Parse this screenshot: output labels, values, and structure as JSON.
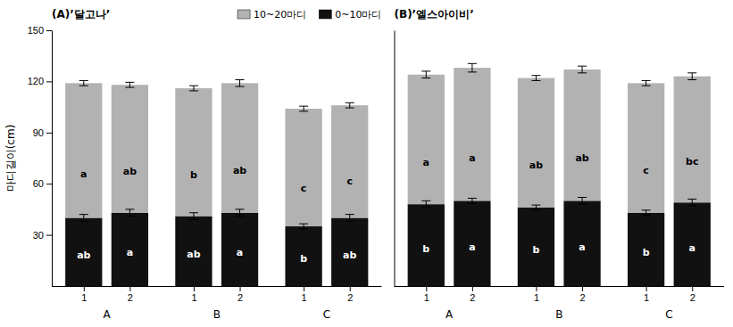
{
  "chart_data": [
    {
      "type": "bar",
      "stacked": true,
      "title": "(A)’달고나’",
      "y_label": "마디길이(cm)",
      "categories": [
        "1",
        "2",
        "1",
        "2",
        "1",
        "2"
      ],
      "groups": [
        "A",
        "B",
        "C"
      ],
      "ylim": [
        0,
        150
      ],
      "yticks": [
        30,
        60,
        90,
        120,
        150
      ],
      "grid": false,
      "legend": "upper right",
      "series": [
        {
          "name": "0~10마디",
          "color": "#111111",
          "values": [
            40.0,
            43.0,
            41.0,
            43.0,
            35.0,
            40.0
          ],
          "errors": [
            2.0,
            2.0,
            2.0,
            2.0,
            1.5,
            2.0
          ],
          "annotations": [
            "ab",
            "a",
            "ab",
            "a",
            "b",
            "ab"
          ]
        },
        {
          "name": "10~20마디",
          "color": "#b2b2b2",
          "values": [
            79.0,
            75.0,
            75.0,
            76.0,
            69.0,
            66.0
          ],
          "errors": [
            1.5,
            1.5,
            1.5,
            2.0,
            1.5,
            1.5
          ],
          "annotations": [
            "a",
            "ab",
            "b",
            "ab",
            "c",
            "c"
          ]
        }
      ]
    },
    {
      "type": "bar",
      "stacked": true,
      "title": "(B)’엘스아이비’",
      "categories": [
        "1",
        "2",
        "1",
        "2",
        "1",
        "2"
      ],
      "groups": [
        "A",
        "B",
        "C"
      ],
      "ylim": [
        0,
        150
      ],
      "yticks": [
        30,
        60,
        90,
        120,
        150
      ],
      "grid": false,
      "tick_labels": "x",
      "series": [
        {
          "color": "#111111",
          "values": [
            48.0,
            50.0,
            46.0,
            50.0,
            43.0,
            49.0
          ],
          "errors": [
            2.0,
            1.5,
            1.5,
            2.0,
            1.5,
            2.0
          ],
          "annotations": [
            "b",
            "a",
            "b",
            "a",
            "b",
            "a"
          ]
        },
        {
          "color": "#b2b2b2",
          "values": [
            76.0,
            78.0,
            76.0,
            77.0,
            76.0,
            74.0
          ],
          "errors": [
            2.0,
            2.5,
            1.5,
            2.0,
            1.5,
            2.0
          ],
          "annotations": [
            "a",
            "a",
            "ab",
            "ab",
            "c",
            "bc"
          ]
        }
      ]
    }
  ]
}
